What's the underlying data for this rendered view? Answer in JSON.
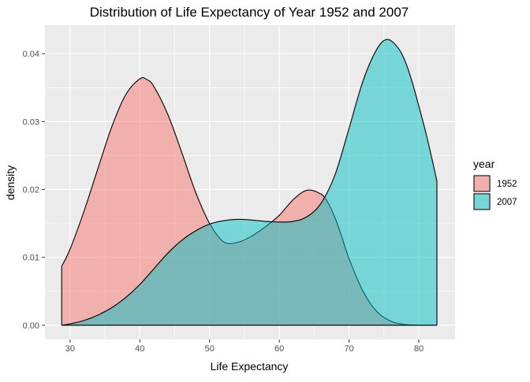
{
  "chart_data": {
    "type": "area",
    "title": "Distribution of Life Expectancy of Year 1952 and 2007",
    "xlabel": "Life Expectancy",
    "ylabel": "density",
    "xlim": [
      26.4,
      85.2
    ],
    "ylim": [
      -0.0021,
      0.0442
    ],
    "xticks": [
      30,
      40,
      50,
      60,
      70,
      80
    ],
    "yticks": [
      0.0,
      0.01,
      0.02,
      0.03,
      0.04
    ],
    "ytick_labels": [
      "0.00",
      "0.01",
      "0.02",
      "0.03",
      "0.04"
    ],
    "grid": true,
    "legend": {
      "title": "year",
      "placement": "right"
    },
    "series": [
      {
        "name": "1952",
        "color": "#F8766D",
        "x": [
          28.8,
          30,
          32,
          34,
          36,
          38,
          40,
          41,
          42,
          44,
          46,
          48,
          50,
          52,
          54,
          56,
          58,
          60,
          62,
          64,
          66,
          67,
          68,
          69,
          70,
          72,
          74,
          76,
          78,
          80,
          82,
          82.6
        ],
        "y": [
          0.0087,
          0.0112,
          0.0168,
          0.0231,
          0.0293,
          0.034,
          0.0363,
          0.0362,
          0.0352,
          0.0311,
          0.0255,
          0.0196,
          0.015,
          0.0123,
          0.0122,
          0.0131,
          0.0145,
          0.0162,
          0.0185,
          0.0199,
          0.0193,
          0.018,
          0.0158,
          0.0129,
          0.0098,
          0.005,
          0.002,
          0.0006,
          0.0001,
          0.0,
          0.0,
          0.0
        ]
      },
      {
        "name": "2007",
        "color": "#00BFC4",
        "x": [
          28.8,
          30,
          32,
          34,
          36,
          38,
          40,
          42,
          44,
          46,
          48,
          50,
          52,
          54,
          56,
          58,
          60,
          62,
          64,
          66,
          68,
          70,
          72,
          74,
          75.5,
          77,
          78,
          79,
          80,
          81,
          82,
          82.6
        ],
        "y": [
          0.0,
          0.0002,
          0.0007,
          0.0015,
          0.0026,
          0.0041,
          0.006,
          0.0083,
          0.0106,
          0.0125,
          0.0139,
          0.0149,
          0.0154,
          0.0156,
          0.0155,
          0.0153,
          0.0152,
          0.0153,
          0.016,
          0.018,
          0.0222,
          0.029,
          0.036,
          0.0407,
          0.0421,
          0.0409,
          0.039,
          0.036,
          0.0323,
          0.0284,
          0.024,
          0.0212
        ]
      }
    ]
  }
}
